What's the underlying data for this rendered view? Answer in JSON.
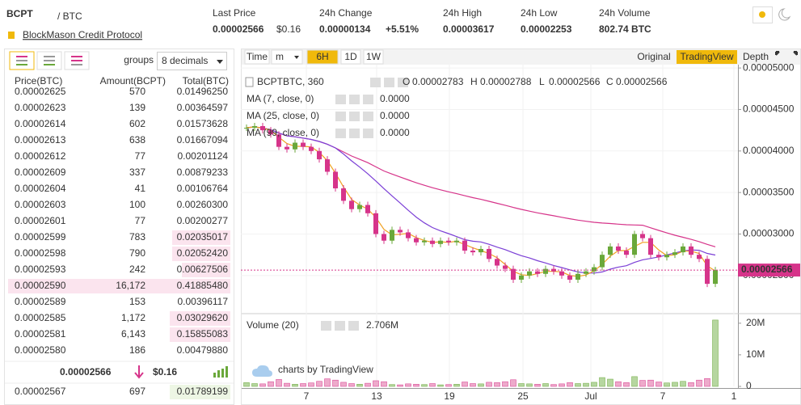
{
  "header": {
    "symbol": "BCPT",
    "quote": "/ BTC",
    "project": "BlockMason Credit Protocol",
    "stats": [
      {
        "label": "Last Price",
        "value": "0.00002566",
        "extra": "$0.16"
      },
      {
        "label": "24h Change",
        "value": "0.00000134",
        "extra": "+5.51%"
      },
      {
        "label": "24h High",
        "value": "0.00003617"
      },
      {
        "label": "24h Low",
        "value": "0.00002253"
      },
      {
        "label": "24h Volume",
        "value": "802.74 BTC"
      }
    ]
  },
  "order_book": {
    "groups_label": "groups",
    "decimals": "8 decimals",
    "columns": [
      "Price(BTC)",
      "Amount(BCPT)",
      "Total(BTC)"
    ],
    "asks": [
      [
        "0.00002625",
        "570",
        "0.01496250"
      ],
      [
        "0.00002623",
        "139",
        "0.00364597"
      ],
      [
        "0.00002614",
        "602",
        "0.01573628"
      ],
      [
        "0.00002613",
        "638",
        "0.01667094"
      ],
      [
        "0.00002612",
        "77",
        "0.00201124"
      ],
      [
        "0.00002609",
        "337",
        "0.00879233"
      ],
      [
        "0.00002604",
        "41",
        "0.00106764"
      ],
      [
        "0.00002603",
        "100",
        "0.00260300"
      ],
      [
        "0.00002601",
        "77",
        "0.00200277"
      ],
      [
        "0.00002599",
        "783",
        "0.02035017"
      ],
      [
        "0.00002598",
        "790",
        "0.02052420"
      ],
      [
        "0.00002593",
        "242",
        "0.00627506"
      ],
      [
        "0.00002590",
        "16,172",
        "0.41885480"
      ],
      [
        "0.00002589",
        "153",
        "0.00396117"
      ],
      [
        "0.00002585",
        "1,172",
        "0.03029620"
      ],
      [
        "0.00002581",
        "6,143",
        "0.15855083"
      ],
      [
        "0.00002580",
        "186",
        "0.00479880"
      ]
    ],
    "last_price": "0.00002566",
    "last_price_usd": "$0.16",
    "bids": [
      [
        "0.00002567",
        "697",
        "0.01789199"
      ]
    ]
  },
  "toolbar": {
    "intervals": [
      "Time",
      "m",
      "6H",
      "1D",
      "1W"
    ],
    "active_interval": 2,
    "views": [
      "Original",
      "TradingView",
      "Depth"
    ],
    "active_view": 1
  },
  "chart_legend": {
    "symbol": "BCPTBTC, 360",
    "ohlc": [
      {
        "label": "O",
        "value": "0.00002783"
      },
      {
        "label": "H",
        "value": "0.00002788"
      },
      {
        "label": "L",
        "value": "0.00002566"
      },
      {
        "label": "C",
        "value": "0.00002566"
      }
    ],
    "indicators": [
      {
        "name": "MA (7, close, 0)",
        "value": "0.0000",
        "color": "#f0a020"
      },
      {
        "name": "MA (25, close, 0)",
        "value": "0.0000",
        "color": "#7b3fd6"
      },
      {
        "name": "MA (99, close, 0)",
        "value": "0.0000",
        "color": "#d6348a"
      }
    ]
  },
  "chart_data": {
    "type": "candlestick",
    "closes": [
      4.28e-05,
      4.3e-05,
      4.25e-05,
      4.2e-05,
      4.05e-05,
      4.02e-05,
      4.1e-05,
      4.05e-05,
      4e-05,
      3.9e-05,
      3.75e-05,
      3.55e-05,
      3.4e-05,
      3.3e-05,
      3.35e-05,
      3.25e-05,
      3e-05,
      2.92e-05,
      3.05e-05,
      3.02e-05,
      2.95e-05,
      2.9e-05,
      2.92e-05,
      2.88e-05,
      2.92e-05,
      2.9e-05,
      2.92e-05,
      2.8e-05,
      2.78e-05,
      2.82e-05,
      2.7e-05,
      2.62e-05,
      2.58e-05,
      2.45e-05,
      2.5e-05,
      2.55e-05,
      2.52e-05,
      2.58e-05,
      2.55e-05,
      2.5e-05,
      2.45e-05,
      2.52e-05,
      2.55e-05,
      2.6e-05,
      2.75e-05,
      2.85e-05,
      2.8e-05,
      2.75e-05,
      3e-05,
      2.95e-05,
      2.75e-05,
      2.72e-05,
      2.75e-05,
      2.78e-05,
      2.85e-05,
      2.75e-05,
      2.7e-05,
      2.4e-05,
      2.566e-05
    ],
    "volumes": [
      1200000,
      900000,
      800000,
      1500000,
      2200000,
      1000000,
      700000,
      900000,
      1100000,
      1600000,
      2400000,
      2000000,
      1300000,
      900000,
      700000,
      1000000,
      1800000,
      1500000,
      600000,
      500000,
      800000,
      700000,
      600000,
      900000,
      500000,
      600000,
      700000,
      1400000,
      900000,
      800000,
      1300000,
      1200000,
      1500000,
      2100000,
      900000,
      800000,
      700000,
      900000,
      600000,
      800000,
      1200000,
      900000,
      1000000,
      1300000,
      2800000,
      2300000,
      1500000,
      1200000,
      3100000,
      1900000,
      2000000,
      1400000,
      1100000,
      1300000,
      1600000,
      1200000,
      2000000,
      2500000,
      21000000
    ],
    "up_color": "#6aa83a",
    "down_color": "#d6348a",
    "xlim": [
      -0.7,
      60.8
    ],
    "xticks": [
      {
        "value": 7.4,
        "label": "7"
      },
      {
        "value": 16.1,
        "label": "13"
      },
      {
        "value": 25.1,
        "label": "19"
      },
      {
        "value": 34.2,
        "label": "25"
      },
      {
        "value": 42.6,
        "label": "Jul"
      },
      {
        "value": 51.5,
        "label": "7"
      },
      {
        "value": 60.3,
        "label": "1"
      }
    ],
    "ylim": [
      2.07e-05,
      5.04e-05
    ],
    "yticks": [
      {
        "value": 2.5e-05,
        "label": "0.00002500"
      },
      {
        "value": 3e-05,
        "label": "0.00003000"
      },
      {
        "value": 3.5e-05,
        "label": "0.00003500"
      },
      {
        "value": 4e-05,
        "label": "0.00004000"
      },
      {
        "value": 4.5e-05,
        "label": "0.00004500"
      },
      {
        "value": 5e-05,
        "label": "0.00005000"
      }
    ],
    "current_price": {
      "value": 2.566e-05,
      "label": "0.00002566"
    },
    "volume_title": "Volume (20)",
    "volume_value": "2.706M",
    "volume_ylim": [
      0,
      22000000
    ],
    "volume_yticks": [
      0,
      {
        "value": 10000000,
        "label": "10M"
      },
      {
        "value": 20000000,
        "label": "20M"
      }
    ],
    "watermark": "charts by TradingView"
  }
}
